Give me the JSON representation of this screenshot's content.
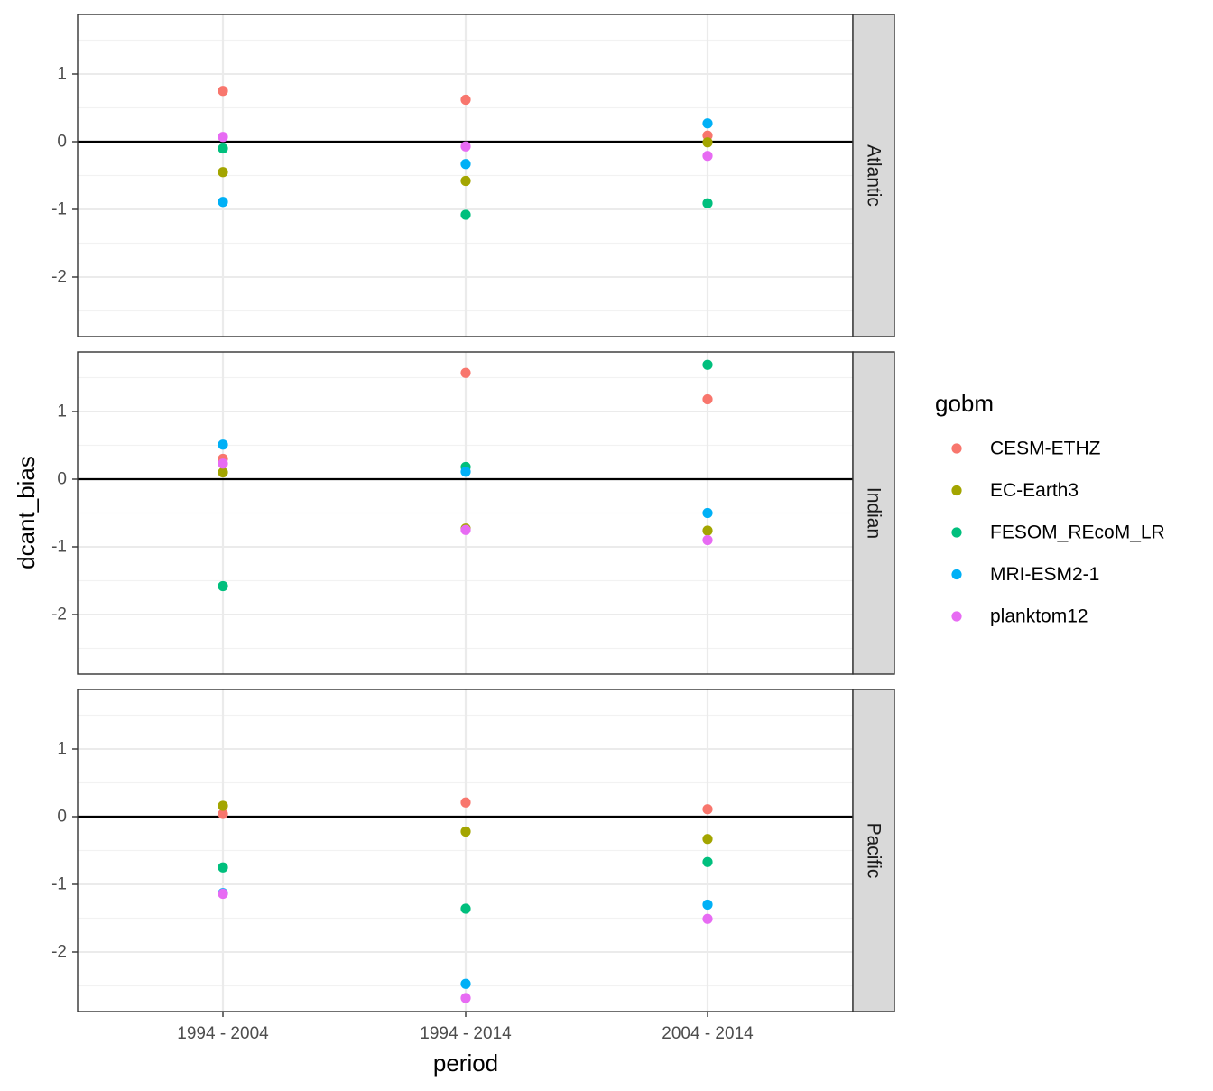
{
  "chart_data": {
    "type": "scatter",
    "xlabel": "period",
    "ylabel": "dcant_bias",
    "categories": [
      "1994 - 2004",
      "1994 - 2014",
      "2004 - 2014"
    ],
    "ylim": [
      -2.88,
      1.88
    ],
    "yticks": [
      1,
      0,
      -1,
      -2
    ],
    "ytick_labels": [
      "1",
      "0",
      "-1",
      "-2"
    ],
    "reference_line": 0,
    "grid": true,
    "legend": {
      "title": "gobm",
      "position": "right",
      "entries": [
        "CESM-ETHZ",
        "EC-Earth3",
        "FESOM_REcoM_LR",
        "MRI-ESM2-1",
        "planktom12"
      ]
    },
    "colors": {
      "CESM-ETHZ": "#F8766D",
      "EC-Earth3": "#A3A500",
      "FESOM_REcoM_LR": "#00BF7D",
      "MRI-ESM2-1": "#00B0F6",
      "planktom12": "#E76BF3"
    },
    "panels": [
      {
        "strip": "Atlantic",
        "series": [
          {
            "name": "CESM-ETHZ",
            "values": [
              0.75,
              0.62,
              0.09
            ]
          },
          {
            "name": "EC-Earth3",
            "values": [
              -0.45,
              -0.58,
              -0.01
            ]
          },
          {
            "name": "FESOM_REcoM_LR",
            "values": [
              -0.1,
              -1.08,
              -0.91
            ]
          },
          {
            "name": "MRI-ESM2-1",
            "values": [
              -0.89,
              -0.33,
              0.27
            ]
          },
          {
            "name": "planktom12",
            "values": [
              0.07,
              -0.07,
              -0.21
            ]
          }
        ]
      },
      {
        "strip": "Indian",
        "series": [
          {
            "name": "CESM-ETHZ",
            "values": [
              0.3,
              1.57,
              1.18
            ]
          },
          {
            "name": "EC-Earth3",
            "values": [
              0.1,
              -0.73,
              -0.76
            ]
          },
          {
            "name": "FESOM_REcoM_LR",
            "values": [
              -1.58,
              0.18,
              1.69
            ]
          },
          {
            "name": "MRI-ESM2-1",
            "values": [
              0.51,
              0.11,
              -0.5
            ]
          },
          {
            "name": "planktom12",
            "values": [
              0.23,
              -0.75,
              -0.9
            ]
          }
        ]
      },
      {
        "strip": "Pacific",
        "series": [
          {
            "name": "CESM-ETHZ",
            "values": [
              0.04,
              0.21,
              0.11
            ]
          },
          {
            "name": "EC-Earth3",
            "values": [
              0.16,
              -0.22,
              -0.33
            ]
          },
          {
            "name": "FESOM_REcoM_LR",
            "values": [
              -0.75,
              -1.36,
              -0.67
            ]
          },
          {
            "name": "MRI-ESM2-1",
            "values": [
              -1.13,
              -2.47,
              -1.3
            ]
          },
          {
            "name": "planktom12",
            "values": [
              -1.14,
              -2.68,
              -1.51
            ]
          }
        ]
      }
    ]
  }
}
